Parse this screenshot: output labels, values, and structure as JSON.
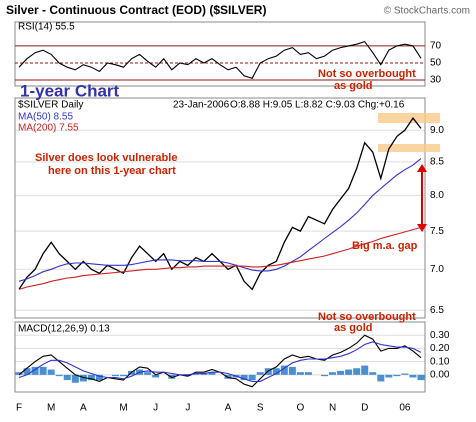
{
  "header": {
    "title": "Silver - Continuous Contract (EOD) ($SILVER)",
    "source": "© StockCharts.com"
  },
  "chart_data": [
    {
      "type": "line",
      "title": "RSI(14) 55.5",
      "categories": [
        "F",
        null,
        null,
        null,
        "M",
        null,
        null,
        null,
        "A",
        null,
        null,
        null,
        null,
        "M",
        null,
        null,
        null,
        "J",
        null,
        null,
        null,
        "J",
        null,
        null,
        null,
        null,
        "A",
        null,
        null,
        null,
        "S",
        null,
        null,
        null,
        null,
        "O",
        null,
        null,
        null,
        "N",
        null,
        null,
        null,
        "D",
        null,
        null,
        null,
        null,
        "06",
        null,
        null
      ],
      "series": [
        {
          "name": "RSI(14)",
          "color": "#000000",
          "values": [
            45,
            55,
            62,
            65,
            60,
            50,
            45,
            42,
            48,
            45,
            40,
            50,
            48,
            45,
            55,
            60,
            52,
            45,
            55,
            42,
            50,
            48,
            55,
            50,
            55,
            48,
            42,
            45,
            35,
            32,
            50,
            55,
            58,
            65,
            68,
            60,
            62,
            55,
            58,
            65,
            68,
            70,
            72,
            75,
            62,
            48,
            65,
            70,
            72,
            70,
            55.5
          ]
        }
      ],
      "ylim": [
        23,
        98
      ],
      "yticks": [
        70,
        50,
        30
      ],
      "grid": true,
      "grid_color": "#8b1a1a",
      "annotations": [
        "Not so overbought",
        "as gold"
      ]
    },
    {
      "type": "line",
      "title": "$SILVER Daily",
      "date": "23-Jan-2006",
      "quote": "O:8.88 H:9.05 L:8.82 C:9.03 Chg:+0.16",
      "subtitle": "1-year Chart",
      "log_scale": true,
      "series": [
        {
          "name": "$SILVER",
          "color": "#000000",
          "values": [
            6.75,
            6.9,
            7.0,
            7.2,
            7.35,
            7.2,
            7.1,
            7.0,
            7.1,
            7.0,
            6.95,
            7.05,
            7.0,
            6.95,
            7.15,
            7.3,
            7.2,
            7.1,
            7.2,
            7.0,
            7.1,
            7.05,
            7.15,
            7.1,
            7.2,
            7.1,
            7.0,
            7.05,
            6.85,
            6.75,
            6.95,
            7.05,
            7.1,
            7.35,
            7.55,
            7.5,
            7.7,
            7.65,
            7.6,
            7.8,
            7.95,
            8.1,
            8.4,
            8.8,
            8.65,
            8.25,
            8.7,
            8.9,
            9.0,
            9.2,
            9.03
          ]
        },
        {
          "name": "MA(50) 8.55",
          "color": "#3333cc",
          "values": [
            6.85,
            6.88,
            6.92,
            6.97,
            7.0,
            7.04,
            7.07,
            7.08,
            7.08,
            7.07,
            7.06,
            7.05,
            7.05,
            7.05,
            7.06,
            7.08,
            7.1,
            7.12,
            7.12,
            7.12,
            7.11,
            7.11,
            7.11,
            7.1,
            7.1,
            7.1,
            7.08,
            7.05,
            7.02,
            6.99,
            6.98,
            6.98,
            7.0,
            7.04,
            7.1,
            7.16,
            7.24,
            7.32,
            7.4,
            7.48,
            7.56,
            7.65,
            7.75,
            7.87,
            8.0,
            8.1,
            8.2,
            8.3,
            8.38,
            8.45,
            8.55
          ]
        },
        {
          "name": "MA(200) 7.55",
          "color": "#cc2222",
          "values": [
            6.75,
            6.78,
            6.8,
            6.82,
            6.85,
            6.87,
            6.89,
            6.9,
            6.92,
            6.93,
            6.94,
            6.95,
            6.96,
            6.97,
            6.98,
            6.99,
            7.0,
            7.0,
            7.01,
            7.02,
            7.02,
            7.03,
            7.03,
            7.04,
            7.04,
            7.04,
            7.04,
            7.04,
            7.04,
            7.03,
            7.03,
            7.04,
            7.05,
            7.07,
            7.09,
            7.11,
            7.13,
            7.15,
            7.17,
            7.2,
            7.23,
            7.26,
            7.3,
            7.33,
            7.36,
            7.4,
            7.43,
            7.46,
            7.49,
            7.52,
            7.55
          ]
        }
      ],
      "ylim": [
        6.41,
        9.54
      ],
      "yticks": [
        {
          "value": 9,
          "label": "9.0"
        },
        8.5,
        {
          "value": 8,
          "label": "8.0"
        },
        7.5,
        {
          "value": 7,
          "label": "7.0"
        },
        6.5
      ],
      "grid": true,
      "grid_color": "#dddddd",
      "annotations": [
        "Silver does look vulnerable",
        "here on this 1-year chart",
        "Big m.a. gap",
        "Not so overbought",
        "as gold"
      ]
    },
    {
      "type": "line",
      "title": "MACD(12,26,9) 0.13",
      "series": [
        {
          "name": "Histogram",
          "type": "bar",
          "color": "#4a8fd0",
          "values": [
            0.02,
            0.05,
            0.06,
            0.06,
            0.04,
            -0.01,
            -0.04,
            -0.06,
            -0.05,
            -0.04,
            -0.04,
            0,
            -0.01,
            -0.01,
            0.03,
            0.04,
            0.02,
            -0.02,
            0,
            -0.03,
            0,
            -0.01,
            0.01,
            0.01,
            0.02,
            0,
            -0.03,
            -0.02,
            -0.04,
            -0.04,
            0.02,
            0.05,
            0.05,
            0.07,
            0.06,
            0.02,
            0.02,
            0,
            -0.01,
            0.02,
            0.03,
            0.04,
            0.05,
            0.07,
            0.02,
            -0.05,
            -0.02,
            -0.01,
            0.01,
            -0.02,
            -0.04
          ]
        },
        {
          "name": "MACD",
          "color": "#000000",
          "values": [
            0.0,
            0.05,
            0.1,
            0.14,
            0.15,
            0.1,
            0.05,
            0.0,
            -0.02,
            -0.03,
            -0.05,
            -0.02,
            -0.03,
            -0.04,
            0.02,
            0.06,
            0.05,
            0.0,
            0.02,
            -0.02,
            0.0,
            -0.01,
            0.02,
            0.02,
            0.04,
            0.02,
            -0.02,
            -0.03,
            -0.07,
            -0.09,
            -0.03,
            0.03,
            0.06,
            0.12,
            0.15,
            0.13,
            0.14,
            0.12,
            0.11,
            0.15,
            0.17,
            0.2,
            0.24,
            0.3,
            0.27,
            0.18,
            0.2,
            0.2,
            0.22,
            0.18,
            0.13
          ]
        },
        {
          "name": "Signal",
          "color": "#3333cc",
          "values": [
            -0.02,
            0.0,
            0.04,
            0.08,
            0.11,
            0.11,
            0.09,
            0.06,
            0.03,
            0.01,
            -0.01,
            -0.02,
            -0.02,
            -0.03,
            -0.01,
            0.02,
            0.03,
            0.02,
            0.02,
            0.01,
            0.0,
            0.0,
            0.01,
            0.01,
            0.02,
            0.02,
            0.01,
            -0.01,
            -0.03,
            -0.05,
            -0.05,
            -0.02,
            0.01,
            0.05,
            0.09,
            0.11,
            0.12,
            0.12,
            0.12,
            0.13,
            0.14,
            0.16,
            0.19,
            0.23,
            0.25,
            0.23,
            0.22,
            0.21,
            0.21,
            0.2,
            0.17
          ]
        }
      ],
      "ylim": [
        -0.13,
        0.4
      ],
      "yticks": [
        {
          "value": 0.3,
          "label": "0.30"
        },
        {
          "value": 0.2,
          "label": "0.20"
        },
        {
          "value": 0.1,
          "label": "0.10"
        },
        {
          "value": 0,
          "label": "0.00"
        }
      ],
      "grid": true,
      "grid_color": "#dddddd"
    }
  ]
}
